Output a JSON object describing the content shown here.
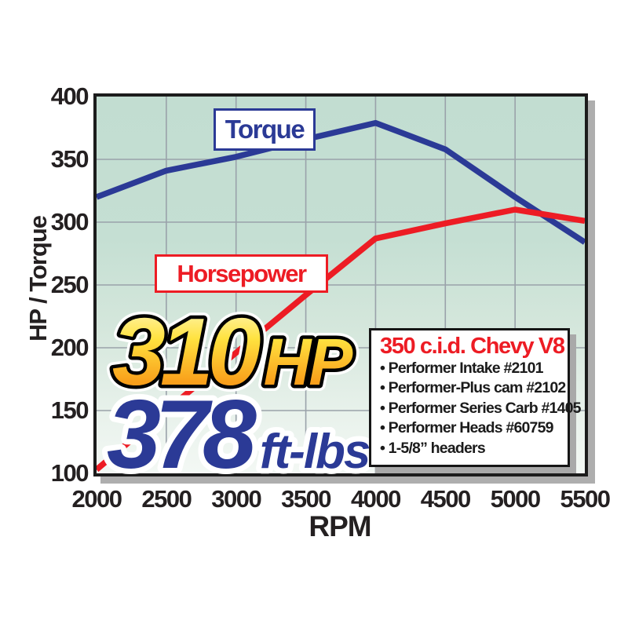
{
  "series_labels": {
    "torque_box": "Torque",
    "horsepower_box": "Horsepower"
  },
  "axis": {
    "y_axis_title": "HP / Torque",
    "x_axis_title": "RPM"
  },
  "hero": {
    "hp_value": "310",
    "hp_unit": "HP",
    "torque_value": "378",
    "torque_unit": "ft-lbs"
  },
  "spec_box": {
    "title": "350 c.i.d. Chevy V8",
    "items": [
      "Performer Intake #2101",
      "Performer-Plus cam #2102",
      "Performer Series Carb #1405",
      "Performer Heads #60759",
      "1-5/8” headers"
    ]
  },
  "colors": {
    "torque_line": "#2b3a96",
    "horsepower_line": "#ed1c24",
    "grid": "#9aa2aa",
    "hero_gold_top": "#fffbd0",
    "hero_gold_mid": "#ffd42a",
    "hero_gold_bottom": "#f7941d",
    "hero_blue": "#2b3a96"
  },
  "chart_data": {
    "type": "line",
    "x": [
      2000,
      2500,
      3000,
      3500,
      4000,
      4500,
      5000,
      5500
    ],
    "series": [
      {
        "name": "Torque",
        "color": "#2b3a96",
        "values": [
          320,
          341,
          352,
          366,
          379,
          358,
          320,
          284
        ]
      },
      {
        "name": "Horsepower",
        "color": "#ed1c24",
        "values": [
          103,
          150,
          196,
          242,
          287,
          299,
          310,
          301
        ]
      }
    ],
    "title": "",
    "xlabel": "RPM",
    "ylabel": "HP / Torque",
    "xlim": [
      2000,
      5500
    ],
    "ylim": [
      100,
      400
    ],
    "x_ticks": [
      2000,
      2500,
      3000,
      3500,
      4000,
      4500,
      5000,
      5500
    ],
    "y_ticks": [
      400,
      350,
      300,
      250,
      200,
      150,
      100
    ],
    "grid": true,
    "legend_position": "on-chart-boxes",
    "annotations": [
      "310 HP",
      "378 ft-lbs"
    ]
  }
}
